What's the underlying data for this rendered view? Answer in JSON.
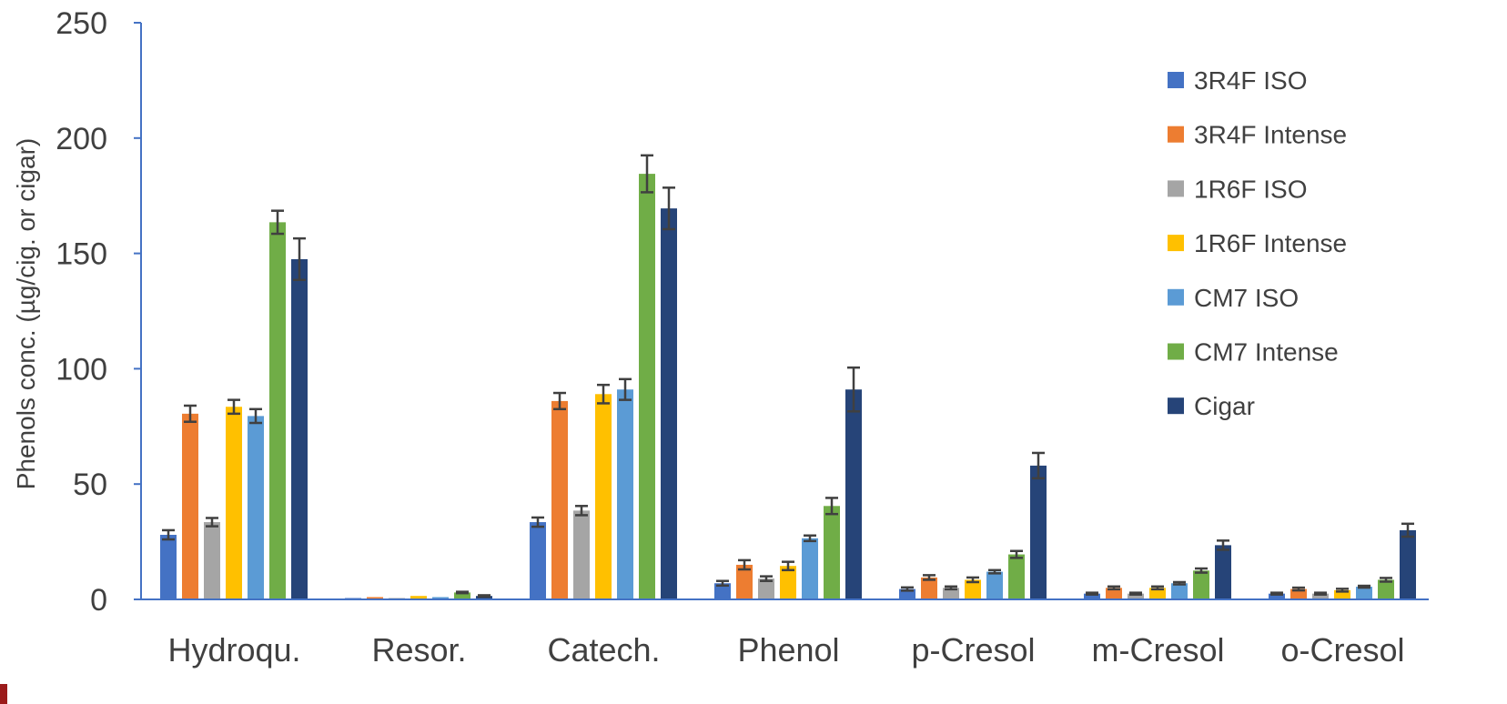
{
  "chart_data": {
    "type": "bar",
    "title": "",
    "xlabel": "",
    "ylabel": "Phenols conc. (µg/cig. or cigar)",
    "ylim": [
      0,
      250
    ],
    "yticks": [
      "0",
      "50",
      "100",
      "150",
      "200",
      "250"
    ],
    "grid": false,
    "legend_position": "right",
    "categories": [
      "Hydroqu.",
      "Resor.",
      "Catech.",
      "Phenol",
      "p-Cresol",
      "m-Cresol",
      "o-Cresol"
    ],
    "series": [
      {
        "name": "3R4F ISO",
        "color": "#4472c4",
        "values": [
          28,
          0.3,
          33.5,
          7,
          4.5,
          2.5,
          2.5
        ],
        "errors": [
          2,
          0.2,
          2,
          1,
          0.7,
          0.4,
          0.4
        ]
      },
      {
        "name": "3R4F Intense",
        "color": "#ed7d31",
        "values": [
          80.5,
          1,
          86,
          15,
          9.5,
          5,
          4.5
        ],
        "errors": [
          3.5,
          0.2,
          3.5,
          2,
          1,
          0.6,
          0.6
        ]
      },
      {
        "name": "1R6F ISO",
        "color": "#a5a5a5",
        "values": [
          33.5,
          0.5,
          38.5,
          9,
          5,
          2.5,
          2.5
        ],
        "errors": [
          1.8,
          0.2,
          2,
          1,
          0.6,
          0.4,
          0.4
        ]
      },
      {
        "name": "1R6F Intense",
        "color": "#ffc000",
        "values": [
          83.5,
          1.5,
          89,
          14.5,
          8.5,
          5,
          4
        ],
        "errors": [
          3,
          0.2,
          4,
          1.8,
          1,
          0.6,
          0.6
        ]
      },
      {
        "name": "CM7 ISO",
        "color": "#5b9bd5",
        "values": [
          79.5,
          1,
          91,
          26.5,
          12,
          7,
          5.5
        ],
        "errors": [
          3,
          0.2,
          4.5,
          1.2,
          0.7,
          0.5,
          0.4
        ]
      },
      {
        "name": "CM7 Intense",
        "color": "#70ad47",
        "values": [
          163.5,
          3,
          184.5,
          40.5,
          19.5,
          12.5,
          8.5
        ],
        "errors": [
          5,
          0.3,
          8,
          3.5,
          1.5,
          0.9,
          0.8
        ]
      },
      {
        "name": "Cigar",
        "color": "#264478",
        "values": [
          147.5,
          1.5,
          169.5,
          91,
          58,
          23.5,
          30
        ],
        "errors": [
          9,
          0.3,
          9,
          9.5,
          5.5,
          2,
          2.8
        ]
      }
    ]
  },
  "colors": {
    "axis": "#4472c4",
    "text": "#404040",
    "error_bar": "#404040",
    "corner_mark": "#9b1b1b"
  }
}
